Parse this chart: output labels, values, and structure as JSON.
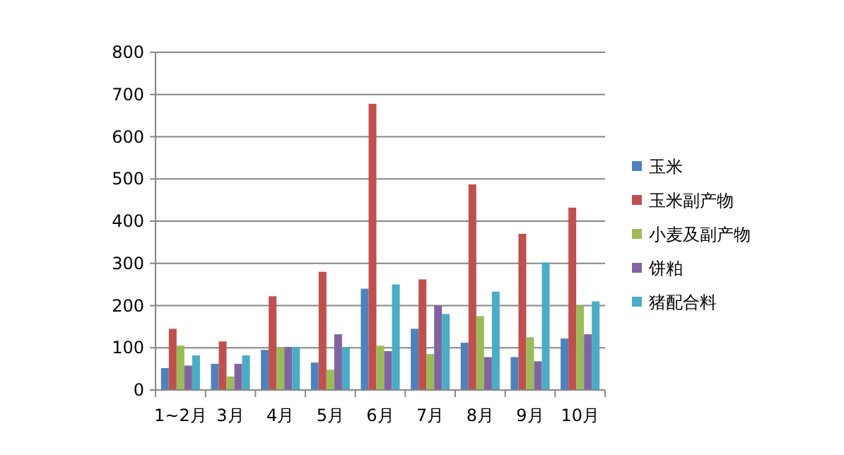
{
  "chart_data": {
    "type": "bar",
    "categories": [
      "1~2月",
      "3月",
      "4月",
      "5月",
      "6月",
      "7月",
      "8月",
      "9月",
      "10月"
    ],
    "series": [
      {
        "name": "玉米",
        "color": "#4f81bd",
        "values": [
          52,
          62,
          95,
          65,
          240,
          145,
          112,
          78,
          122
        ]
      },
      {
        "name": "玉米副产物",
        "color": "#c0504d",
        "values": [
          145,
          115,
          222,
          280,
          678,
          262,
          487,
          370,
          432
        ]
      },
      {
        "name": "小麦及副产物",
        "color": "#9bbb59",
        "values": [
          105,
          32,
          100,
          48,
          105,
          85,
          175,
          125,
          200
        ]
      },
      {
        "name": "饼粕",
        "color": "#8064a2",
        "values": [
          58,
          62,
          102,
          132,
          92,
          200,
          78,
          68,
          132
        ]
      },
      {
        "name": "猪配合料",
        "color": "#4bacc6",
        "values": [
          82,
          82,
          102,
          102,
          250,
          180,
          233,
          302,
          210
        ]
      }
    ],
    "ylim": [
      0,
      800
    ],
    "yticks": [
      0,
      100,
      200,
      300,
      400,
      500,
      600,
      700,
      800
    ],
    "grid": "y",
    "legend": "right"
  }
}
